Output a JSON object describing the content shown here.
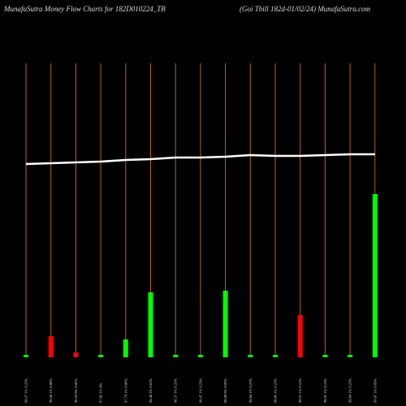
{
  "chart_data": {
    "type": "bar",
    "title": "MunafaSutra  Money Flow  Charts for 182D010224_TB",
    "subtitle": "(Goi   Tbill 182d-01/02/24) MunafaSutra.com",
    "categories": [
      "98.67 1% 0.23%",
      "98.68 1% 0.08%",
      "98.69 0% 0.02%",
      "97.86 1% 0%",
      "97.74 1% 0.06%",
      "98.48 2% 0.62%",
      "98.57 1% 0.23%",
      "98.47 1% 0.23%",
      "98.80 0% 0.05%",
      "98.84 1% 0.23%",
      "98.86 1% 0.23%",
      "98.91 1% 0.51%",
      "98.92 1% 0.23%",
      "98.84 1% 0.23%",
      "99.87 1% 0.05%"
    ],
    "values": [
      3,
      26,
      6,
      3,
      22,
      80,
      3,
      3,
      82,
      3,
      3,
      52,
      3,
      3,
      201
    ],
    "colors": [
      "#00ff00",
      "#ff0000",
      "#ff0000",
      "#00ff00",
      "#00ff00",
      "#00ff00",
      "#00ff00",
      "#00ff00",
      "#00ff00",
      "#00ff00",
      "#00ff00",
      "#ff0000",
      "#00ff00",
      "#00ff00",
      "#00ff00"
    ],
    "line": {
      "color": "#ffffff",
      "values": [
        238,
        239,
        240,
        241,
        243,
        244,
        246,
        246,
        247,
        249,
        248,
        248,
        249,
        250,
        250
      ]
    },
    "grid_color": "#b8621b"
  }
}
